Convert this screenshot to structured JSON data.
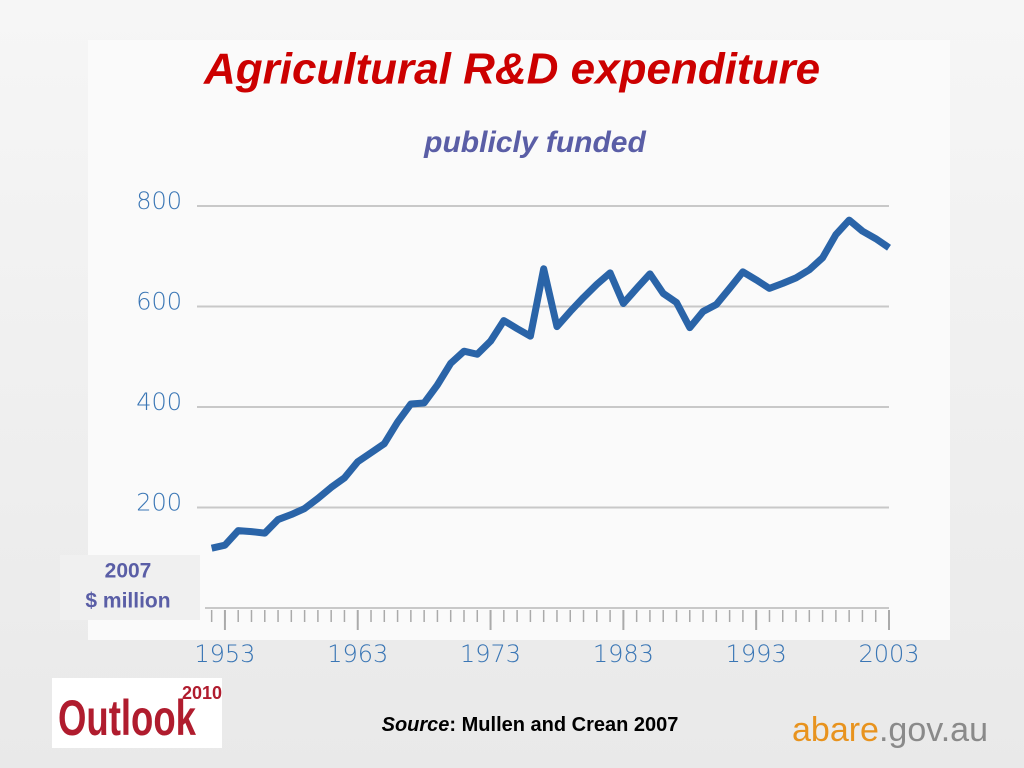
{
  "chart_data": {
    "type": "line",
    "title": "Agricultural R&D expenditure",
    "subtitle": "publicly funded",
    "y_label_lines": [
      "2007",
      "$ million"
    ],
    "source_label": "Source",
    "source_text": ": Mullen and Crean 2007",
    "logos": {
      "outlook": "Outlook",
      "outlook_year": "2010",
      "abare": "abare",
      "abare_domain": ".gov.au"
    },
    "x": [
      1952,
      1953,
      1954,
      1955,
      1956,
      1957,
      1958,
      1959,
      1960,
      1961,
      1962,
      1963,
      1964,
      1965,
      1966,
      1967,
      1968,
      1969,
      1970,
      1971,
      1972,
      1973,
      1974,
      1975,
      1976,
      1977,
      1978,
      1979,
      1980,
      1981,
      1982,
      1983,
      1984,
      1985,
      1986,
      1987,
      1988,
      1989,
      1990,
      1991,
      1992,
      1993,
      1994,
      1995,
      1996,
      1997,
      1998,
      1999,
      2000,
      2001,
      2002,
      2003
    ],
    "series": [
      {
        "name": "Expenditure",
        "color": "#2a64a8",
        "values": [
          119,
          125,
          154,
          152,
          149,
          176,
          186,
          198,
          218,
          240,
          259,
          291,
          309,
          327,
          370,
          406,
          408,
          444,
          487,
          511,
          505,
          531,
          572,
          556,
          541,
          675,
          560,
          590,
          618,
          644,
          667,
          606,
          636,
          665,
          626,
          608,
          558,
          590,
          604,
          636,
          669,
          653,
          636,
          646,
          657,
          673,
          697,
          743,
          772,
          750,
          735,
          717
        ]
      }
    ],
    "xlim": [
      1951.5,
      2003
    ],
    "xticks": [
      1953,
      1963,
      1973,
      1983,
      1993,
      2003
    ],
    "ylim": [
      0,
      800
    ],
    "yticks": [
      200,
      400,
      600,
      800
    ],
    "grid": true
  }
}
